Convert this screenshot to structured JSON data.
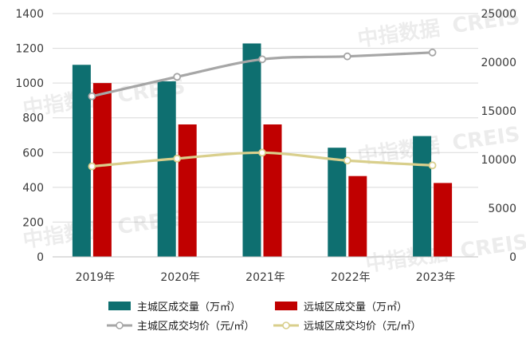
{
  "chart_data": {
    "type": "bar",
    "categories": [
      "2019年",
      "2020年",
      "2021年",
      "2022年",
      "2023年"
    ],
    "ylim_left": [
      0,
      1400
    ],
    "ylim_right": [
      0,
      25000
    ],
    "yticks_left": [
      0,
      200,
      400,
      600,
      800,
      1000,
      1200,
      1400
    ],
    "yticks_right": [
      0,
      5000,
      10000,
      15000,
      20000,
      25000
    ],
    "yticks_left_labels": [
      "0",
      "200",
      "400",
      "600",
      "800",
      "1000",
      "1200",
      "1400"
    ],
    "yticks_right_labels": [
      "0",
      "5000",
      "10000",
      "15000",
      "20000",
      "25000"
    ],
    "grid": true,
    "legend_position": "bottom",
    "series": [
      {
        "name": "主城区成交量（万㎡）",
        "type": "bar",
        "axis": "left",
        "color": "#0e6f70",
        "values": [
          1105,
          1010,
          1228,
          628,
          695
        ]
      },
      {
        "name": "远城区成交量（万㎡）",
        "type": "bar",
        "axis": "left",
        "color": "#c00000",
        "values": [
          1000,
          762,
          762,
          465,
          425
        ]
      },
      {
        "name": "主城区成交均价（元/㎡）",
        "type": "line",
        "axis": "right",
        "color": "#a6a6a6",
        "values": [
          16500,
          18500,
          20300,
          20600,
          21000
        ]
      },
      {
        "name": "远城区成交均价（元/㎡）",
        "type": "line",
        "axis": "right",
        "color": "#d9cf8c",
        "values": [
          9300,
          10100,
          10700,
          9900,
          9400
        ]
      }
    ]
  },
  "watermark": {
    "cn": "中指数据",
    "en": "CREIS"
  },
  "colors": {
    "grid": "#d9d9d9",
    "axis": "#bfbfbf",
    "text": "#3a3a3a"
  }
}
